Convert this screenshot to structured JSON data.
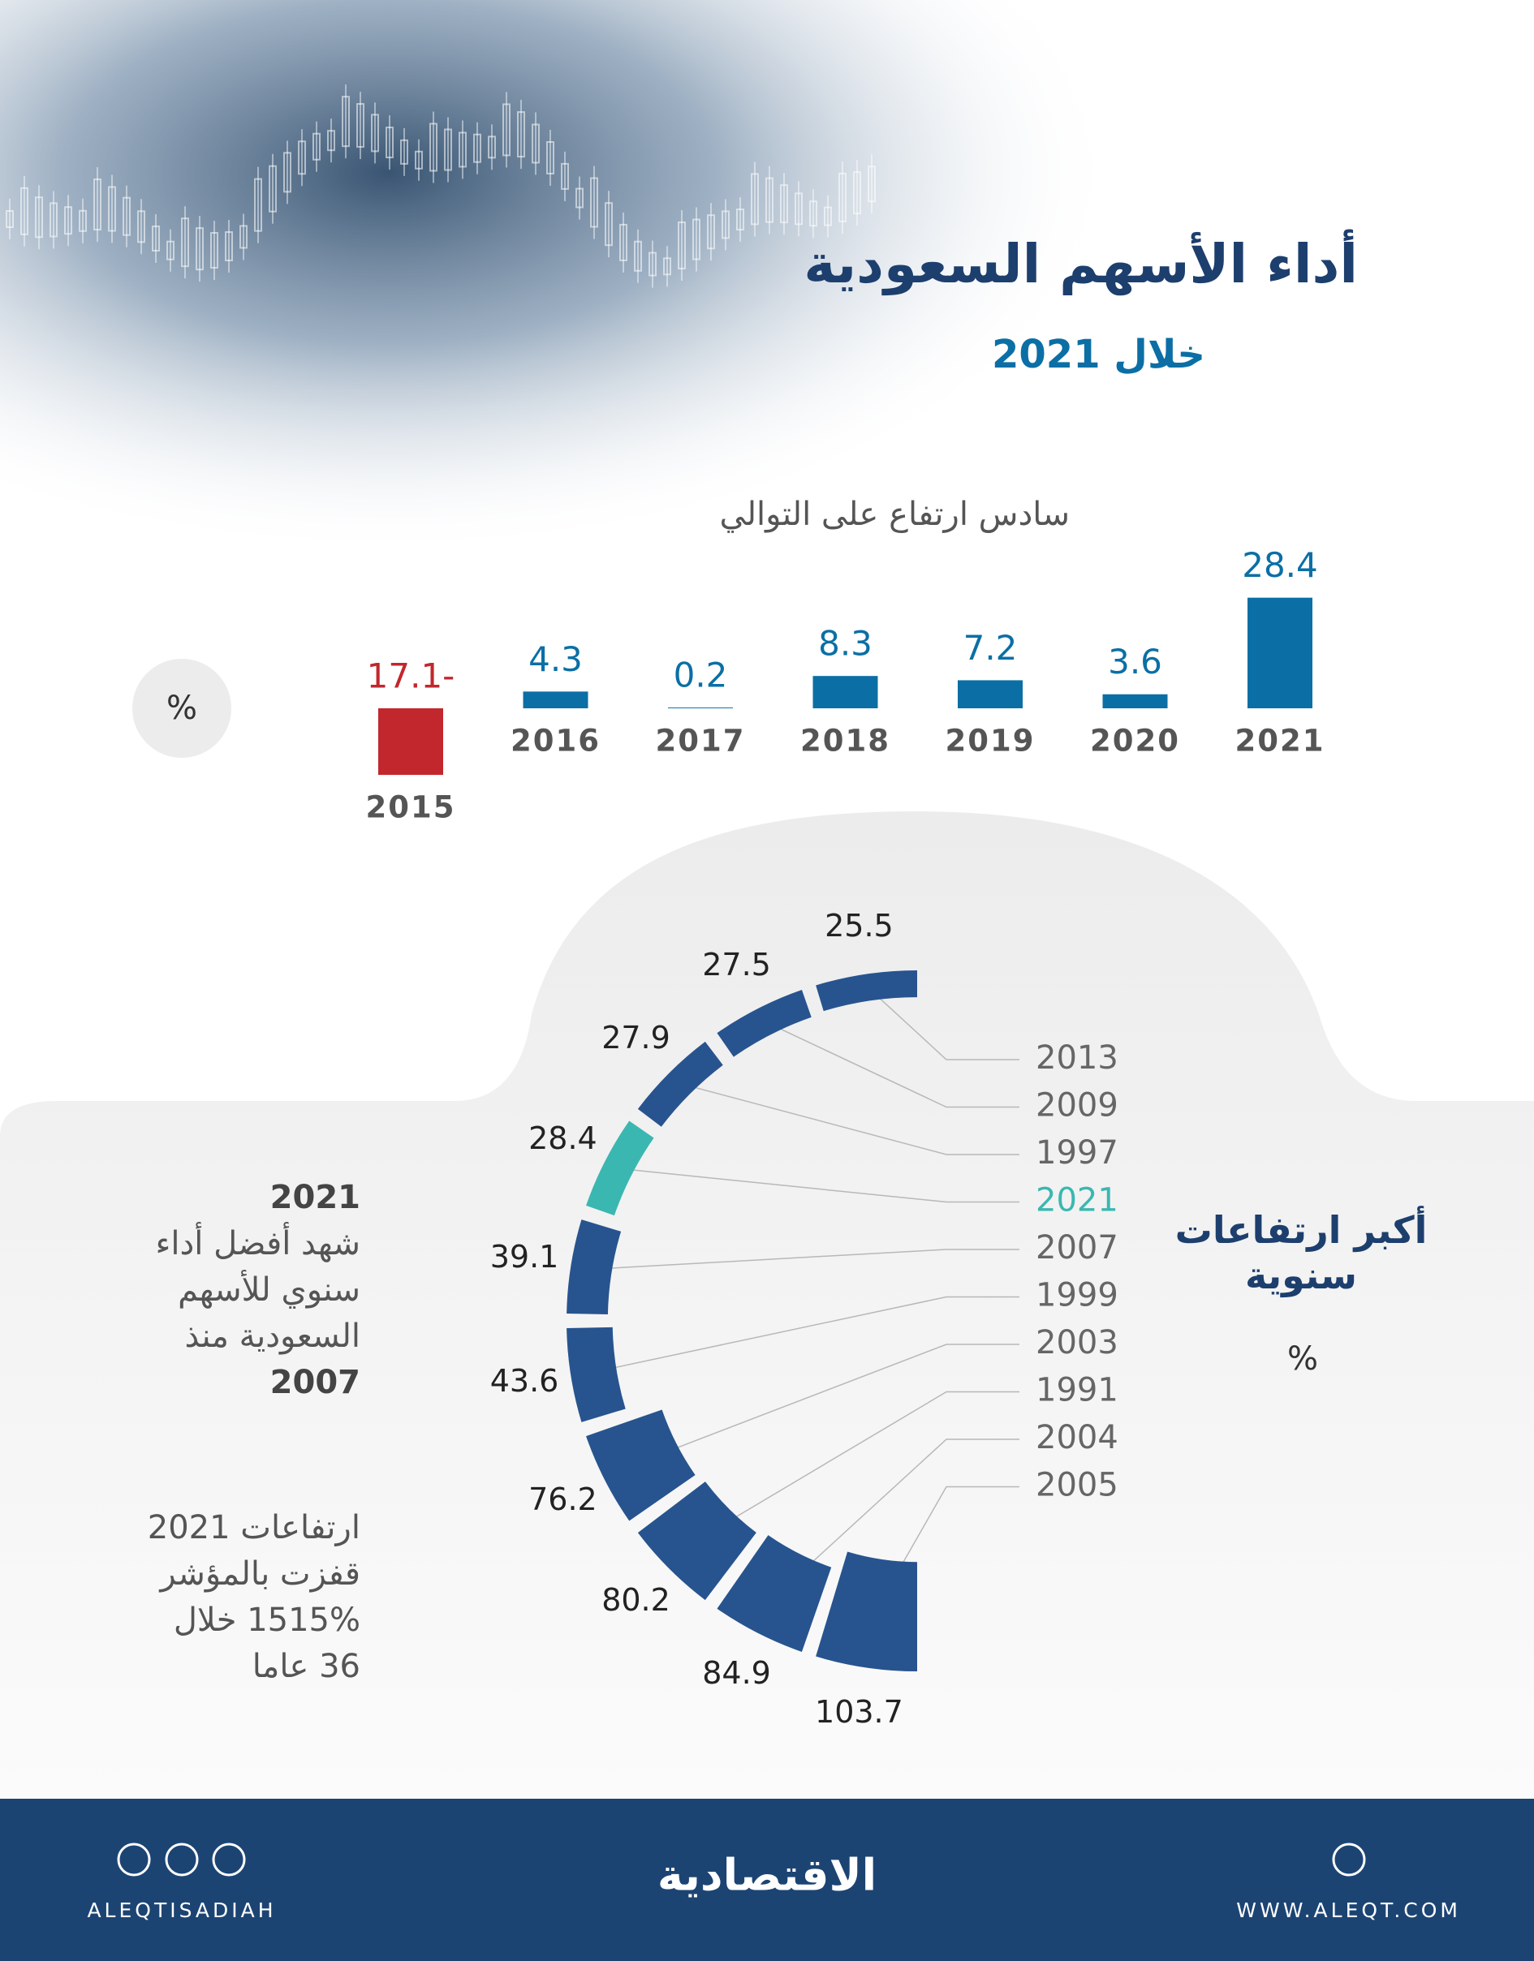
{
  "header": {
    "title": "أداء الأسهم السعودية",
    "subtitle": "خلال 2021"
  },
  "chart_data": [
    {
      "type": "bar",
      "title": "سادس ارتفاع على التوالي",
      "unit": "%",
      "categories": [
        "2015",
        "2016",
        "2017",
        "2018",
        "2019",
        "2020",
        "2021"
      ],
      "values": [
        -17.1,
        4.3,
        0.2,
        8.3,
        7.2,
        3.6,
        28.4
      ],
      "value_labels": [
        "17.1-",
        "4.3",
        "0.2",
        "8.3",
        "7.2",
        "3.6",
        "28.4"
      ],
      "color": "#0b6fa5",
      "negative_color": "#c1272d"
    },
    {
      "type": "radial-bar",
      "title": "أكبر ارتفاعات سنوية",
      "unit": "%",
      "categories": [
        "2013",
        "2009",
        "1997",
        "2021",
        "2007",
        "1999",
        "2003",
        "1991",
        "2004",
        "2005"
      ],
      "values": [
        25.5,
        27.5,
        27.9,
        28.4,
        39.1,
        43.6,
        76.2,
        80.2,
        84.9,
        103.7
      ],
      "colors": [
        "#27548f",
        "#27548f",
        "#27548f",
        "#3bb7b1",
        "#27548f",
        "#27548f",
        "#27548f",
        "#27548f",
        "#27548f",
        "#27548f"
      ]
    }
  ],
  "notes": [
    {
      "lines": [
        "2021",
        "شهد أفضل أداء",
        "سنوي للأسهم",
        "السعودية منذ",
        "2007"
      ]
    },
    {
      "lines": [
        "ارتفاعات 2021",
        "قفزت بالمؤشر",
        "1515% خلال",
        "36 عاما"
      ]
    }
  ],
  "footer": {
    "handle": "ALEQTISADIAH",
    "logo": "الاقتصادية",
    "website": "WWW.ALEQT.COM"
  }
}
